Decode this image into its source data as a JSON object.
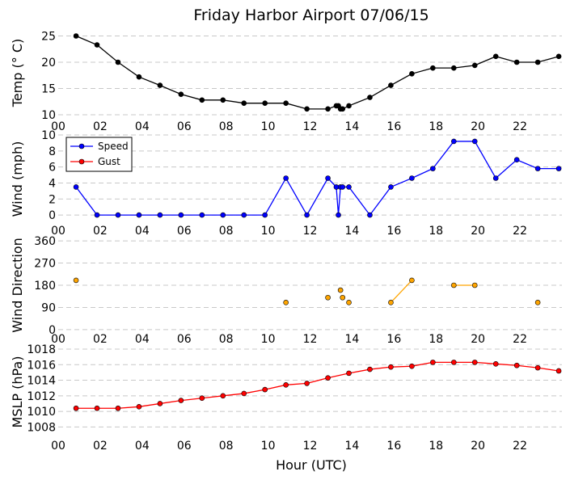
{
  "title": "Friday Harbor Airport 07/06/15",
  "xlabel": "Hour (UTC)",
  "x_tick_labels": [
    "00",
    "02",
    "04",
    "06",
    "08",
    "10",
    "12",
    "14",
    "16",
    "18",
    "20",
    "22"
  ],
  "chart_data": [
    {
      "type": "line",
      "ylabel": "Temp ($^\\circ$C)",
      "ylabel_display": "Temp (° C)",
      "ylim": [
        10,
        26
      ],
      "yticks": [
        10,
        15,
        20,
        25
      ],
      "grid": true,
      "series": [
        {
          "color": "#000000",
          "x": [
            0.85,
            1.85,
            2.85,
            3.85,
            4.85,
            5.85,
            6.85,
            7.85,
            8.85,
            9.85,
            10.85,
            11.85,
            12.85,
            13.25,
            13.35,
            13.45,
            13.55,
            13.85,
            14.85,
            15.85,
            16.85,
            17.85,
            18.85,
            19.85,
            20.85,
            21.85,
            22.85,
            23.85
          ],
          "y": [
            25,
            23.3,
            20,
            17.2,
            15.6,
            13.9,
            12.8,
            12.8,
            12.2,
            12.2,
            12.2,
            11.1,
            11.1,
            11.7,
            11.7,
            11.1,
            11.1,
            11.7,
            13.3,
            15.6,
            17.8,
            18.9,
            18.9,
            19.4,
            21.1,
            20,
            20,
            21.1
          ]
        }
      ]
    },
    {
      "type": "line",
      "ylabel": "Wind (mph)",
      "ylim": [
        -1,
        10
      ],
      "yticks": [
        0,
        2,
        4,
        6,
        8,
        10
      ],
      "grid": true,
      "legend": "upper-left",
      "series": [
        {
          "name": "Speed",
          "color": "#0000ff",
          "x": [
            0.85,
            1.85,
            2.85,
            3.85,
            4.85,
            5.85,
            6.85,
            7.85,
            8.85,
            9.85,
            10.85,
            11.85,
            12.85,
            13.25,
            13.35,
            13.45,
            13.55,
            13.85,
            14.85,
            15.85,
            16.85,
            17.85,
            18.85,
            19.85,
            20.85,
            21.85,
            22.85,
            23.85
          ],
          "y": [
            3.5,
            0,
            0,
            0,
            0,
            0,
            0,
            0,
            0,
            0,
            4.6,
            0,
            4.6,
            3.5,
            0,
            3.5,
            3.5,
            3.5,
            0,
            3.5,
            4.6,
            5.8,
            9.2,
            9.2,
            4.6,
            6.9,
            5.8,
            5.8
          ]
        },
        {
          "name": "Gust",
          "color": "#ff0000",
          "x": [],
          "y": []
        }
      ]
    },
    {
      "type": "scatter",
      "ylabel": "Wind Direction",
      "ylim": [
        -20,
        380
      ],
      "yticks": [
        0,
        90,
        180,
        270,
        360
      ],
      "grid": true,
      "series": [
        {
          "color": "#ffa500",
          "x": [
            0.85,
            10.85,
            12.85,
            13.45,
            13.55,
            13.85,
            15.85,
            16.85,
            18.85,
            19.85,
            22.85
          ],
          "y": [
            200,
            110,
            130,
            160,
            130,
            110,
            110,
            200,
            180,
            180,
            110
          ],
          "connected_segments": [
            [
              6,
              7
            ],
            [
              8,
              9
            ]
          ]
        }
      ]
    },
    {
      "type": "line",
      "ylabel": "MSLP (hPa)",
      "ylim": [
        1007,
        1018
      ],
      "yticks": [
        1008,
        1010,
        1012,
        1014,
        1016,
        1018
      ],
      "grid": true,
      "series": [
        {
          "color": "#ff0000",
          "x": [
            0.85,
            1.85,
            2.85,
            3.85,
            4.85,
            5.85,
            6.85,
            7.85,
            8.85,
            9.85,
            10.85,
            11.85,
            12.85,
            13.85,
            14.85,
            15.85,
            16.85,
            17.85,
            18.85,
            19.85,
            20.85,
            21.85,
            22.85,
            23.85
          ],
          "y": [
            1010.4,
            1010.4,
            1010.4,
            1010.6,
            1011,
            1011.4,
            1011.7,
            1012,
            1012.3,
            1012.8,
            1013.4,
            1013.6,
            1014.3,
            1014.9,
            1015.4,
            1015.7,
            1015.8,
            1016.3,
            1016.3,
            1016.3,
            1016.1,
            1015.9,
            1015.6,
            1015.2
          ]
        }
      ]
    }
  ]
}
